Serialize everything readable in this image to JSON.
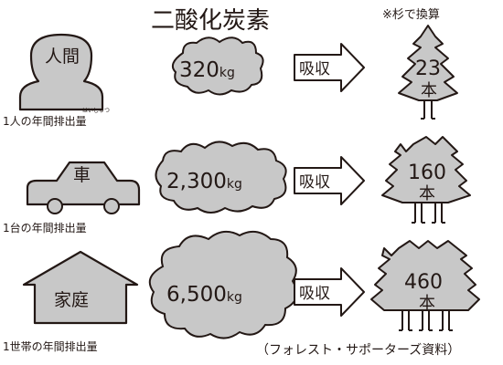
{
  "title": "二酸化炭素",
  "note": "※杉で換算",
  "source": "（フォレスト・サポーターズ資料）",
  "arrow_label": "吸収",
  "rows": [
    {
      "icon_label": "人間",
      "caption": "1人の年間排出量",
      "caption_ruby": "はいしゅつ",
      "co2_value": "320",
      "co2_unit": "kg",
      "trees_value": "23",
      "trees_unit": "本"
    },
    {
      "icon_label": "車",
      "caption": "1台の年間排出量",
      "co2_value": "2,300",
      "co2_unit": "kg",
      "trees_value": "160",
      "trees_unit": "本"
    },
    {
      "icon_label": "家庭",
      "caption": "1世帯の年間排出量",
      "co2_value": "6,500",
      "co2_unit": "kg",
      "trees_value": "460",
      "trees_unit": "本"
    }
  ],
  "colors": {
    "fill": "#c8c8c8",
    "stroke": "#231815",
    "text": "#231815"
  }
}
